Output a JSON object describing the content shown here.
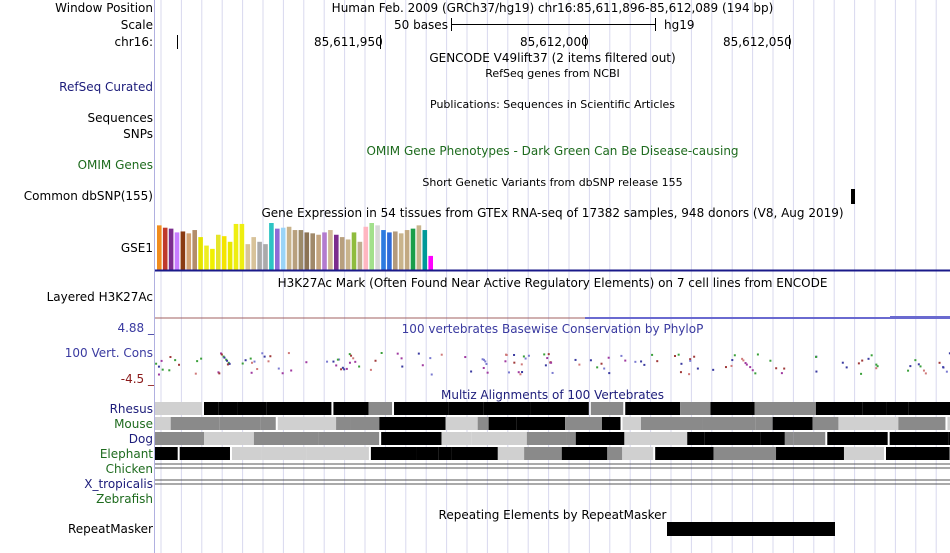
{
  "labels": {
    "window_position": "Window Position",
    "scale": "Scale",
    "chrom": "chr16:",
    "refseq": "RefSeq Curated",
    "sequences": "Sequences",
    "snps": "SNPs",
    "omim": "OMIM Genes",
    "dbsnp": "Common dbSNP(155)",
    "gse1": "GSE1",
    "h3k27ac": "Layered H3K27Ac",
    "vert_cons": "100 Vert. Cons",
    "cons_max": "4.88 _",
    "cons_min": "-4.5 _",
    "rhesus": "Rhesus",
    "mouse": "Mouse",
    "dog": "Dog",
    "elephant": "Elephant",
    "chicken": "Chicken",
    "x_tropicalis": "X_tropicalis",
    "zebrafish": "Zebrafish",
    "repeatmasker": "RepeatMasker"
  },
  "header": {
    "assembly": "Human Feb. 2009 (GRCh37/hg19)   chr16:85,611,896-85,612,089 (194 bp)",
    "scale_bases": "50 bases",
    "scale_db": "hg19",
    "tick1": "85,611,950",
    "tick2": "85,612,000",
    "tick3": "85,612,050"
  },
  "tracks": {
    "gencode": "GENCODE V49lift37 (2 items filtered out)",
    "refseq": "RefSeq genes from NCBI",
    "publications": "Publications: Sequences in Scientific Articles",
    "omim": "OMIM Gene Phenotypes - Dark Green Can Be Disease-causing",
    "dbsnp": "Short Genetic Variants from dbSNP release 155",
    "gtex": "Gene Expression in 54 tissues from GTEx RNA-seq of 17382 samples, 948 donors (V8, Aug 2019)",
    "h3k27ac": "H3K27Ac Mark (Often Found Near Active Regulatory Elements) on 7 cell lines from ENCODE",
    "phylop": "100 vertebrates Basewise Conservation by PhyloP",
    "multiz": "Multiz Alignments of 100 Vertebrates",
    "repeatmasker": "Repeating Elements by RepeatMasker"
  },
  "gtex_values": [
    0.95,
    0.9,
    0.88,
    0.8,
    0.82,
    0.78,
    0.85,
    0.7,
    0.52,
    0.45,
    0.75,
    0.72,
    0.6,
    0.98,
    0.98,
    0.55,
    0.7,
    0.6,
    0.55,
    1.0,
    0.88,
    0.9,
    0.92,
    0.85,
    0.85,
    0.8,
    0.78,
    0.75,
    0.8,
    0.85,
    0.75,
    0.7,
    0.65,
    0.8,
    0.6,
    0.92,
    1.0,
    0.95,
    0.85,
    0.8,
    0.82,
    0.78,
    0.85,
    0.88,
    0.95,
    0.85,
    0.3
  ],
  "gtex_colors": [
    "#f08c1e",
    "#c0392b",
    "#7b2d8e",
    "#c77dff",
    "#8a3b12",
    "#d4a373",
    "#b38d6b",
    "#e5e500",
    "#eeee22",
    "#f0f000",
    "#e5e52a",
    "#f4e400",
    "#e8e800",
    "#eeee11",
    "#eeee11",
    "#d8c39a",
    "#d8c39a",
    "#aaaaaa",
    "#aaaaaa",
    "#2ec4c4",
    "#8f6bd6",
    "#9ad4f7",
    "#c8b28a",
    "#b8a07e",
    "#9c8a6a",
    "#8b7355",
    "#a0896a",
    "#c4a57f",
    "#b37bcf",
    "#d0b995",
    "#7b2d8e",
    "#b8a07e",
    "#c9b48c",
    "#8fbc3e",
    "#bfae90",
    "#ffb6c1",
    "#a2e08c",
    "#d8d8d8",
    "#2e7be0",
    "#2e6ad8",
    "#b39a7c",
    "#c9b48c",
    "#c2a982",
    "#1a9e4a",
    "#c9b48c",
    "#009999",
    "#ff00ff"
  ]
}
